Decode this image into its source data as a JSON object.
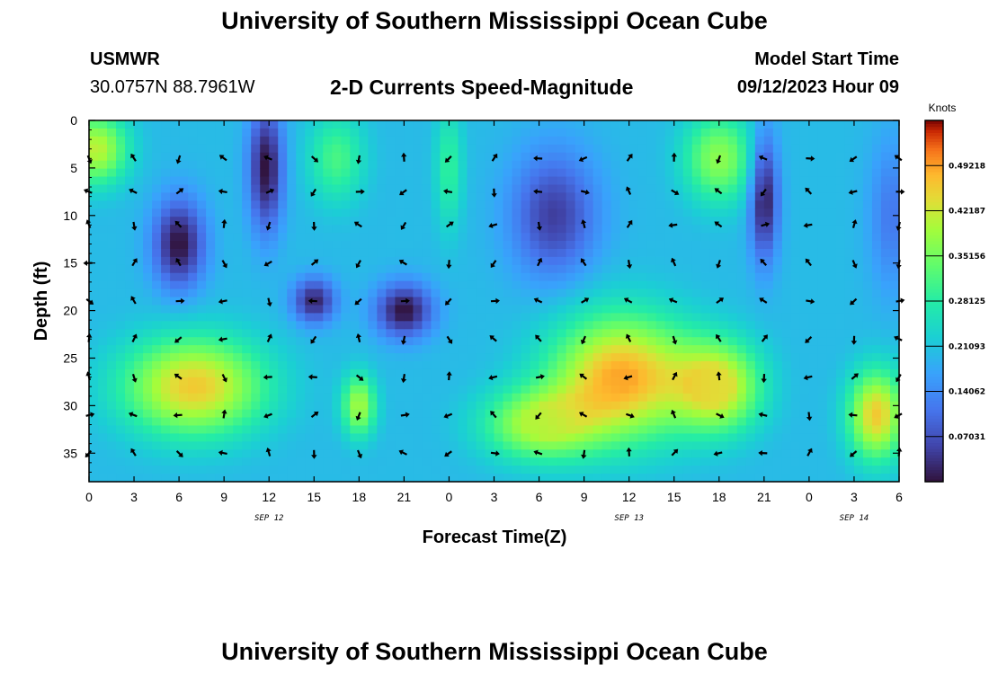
{
  "header": {
    "title": "University of Southern Mississippi Ocean Cube",
    "station": "USMWR",
    "coords": "30.0757N  88.7961W",
    "chart_title": "2-D Currents Speed-Magnitude",
    "model_start_label": "Model Start Time",
    "model_start_value": "09/12/2023 Hour 09"
  },
  "footer": {
    "title": "University of Southern Mississippi Ocean Cube"
  },
  "chart_data": {
    "type": "heatmap",
    "title": "2-D Currents Speed-Magnitude",
    "xlabel": "Forecast Time(Z)",
    "ylabel": "Depth (ft)",
    "x_tick_labels": [
      "0",
      "3",
      "6",
      "9",
      "12",
      "15",
      "18",
      "21",
      "0",
      "3",
      "6",
      "9",
      "12",
      "15",
      "18",
      "21",
      "0",
      "3",
      "6"
    ],
    "x_hours": [
      0,
      3,
      6,
      9,
      12,
      15,
      18,
      21,
      24,
      27,
      30,
      33,
      36,
      39,
      42,
      45,
      48,
      51,
      54
    ],
    "date_labels": [
      {
        "label": "SEP 12",
        "hour": 12
      },
      {
        "label": "SEP 13",
        "hour": 36
      },
      {
        "label": "SEP 14",
        "hour": 51
      }
    ],
    "y_ticks": [
      0,
      5,
      10,
      15,
      20,
      25,
      30,
      35
    ],
    "ylim": [
      0,
      38
    ],
    "xlim": [
      0,
      54
    ],
    "colorbar": {
      "unit": "Knots",
      "min": 0,
      "max": 0.5625,
      "tick_values": [
        0.49218,
        0.42187,
        0.35156,
        0.28125,
        0.21093,
        0.14062,
        0.07031
      ],
      "tick_labels": [
        "0.49218",
        "0.42187",
        "0.35156",
        "0.28125",
        "0.21093",
        "0.14062",
        "0.07031"
      ]
    },
    "speed_features": [
      {
        "hour": 0.5,
        "depth": 3,
        "value": 0.42,
        "sx": 2.2,
        "sy": 4
      },
      {
        "hour": 6,
        "depth": 13,
        "value": 0.0,
        "sx": 1.8,
        "sy": 5
      },
      {
        "hour": 11.8,
        "depth": 5,
        "value": 0.0,
        "sx": 1.2,
        "sy": 7
      },
      {
        "hour": 16.5,
        "depth": 4,
        "value": 0.32,
        "sx": 2,
        "sy": 5
      },
      {
        "hour": 24,
        "depth": 5,
        "value": 0.3,
        "sx": 1,
        "sy": 7
      },
      {
        "hour": 21,
        "depth": 20,
        "value": 0.0,
        "sx": 2,
        "sy": 3
      },
      {
        "hour": 15,
        "depth": 19,
        "value": 0.02,
        "sx": 1.5,
        "sy": 2.5
      },
      {
        "hour": 7,
        "depth": 28,
        "value": 0.47,
        "sx": 5,
        "sy": 5.5
      },
      {
        "hour": 18,
        "depth": 30,
        "value": 0.4,
        "sx": 1.2,
        "sy": 3.5
      },
      {
        "hour": 30,
        "depth": 32,
        "value": 0.4,
        "sx": 4,
        "sy": 4
      },
      {
        "hour": 35.5,
        "depth": 27,
        "value": 0.5,
        "sx": 5,
        "sy": 7
      },
      {
        "hour": 42,
        "depth": 28,
        "value": 0.44,
        "sx": 3,
        "sy": 5
      },
      {
        "hour": 42,
        "depth": 4,
        "value": 0.38,
        "sx": 2.5,
        "sy": 5
      },
      {
        "hour": 45,
        "depth": 8,
        "value": 0.0,
        "sx": 1,
        "sy": 7
      },
      {
        "hour": 31,
        "depth": 10,
        "value": 0.05,
        "sx": 3,
        "sy": 7
      },
      {
        "hour": 52.5,
        "depth": 31,
        "value": 0.47,
        "sx": 2,
        "sy": 5
      },
      {
        "hour": 53.5,
        "depth": 10,
        "value": 0.12,
        "sx": 1.5,
        "sy": 8
      }
    ]
  }
}
